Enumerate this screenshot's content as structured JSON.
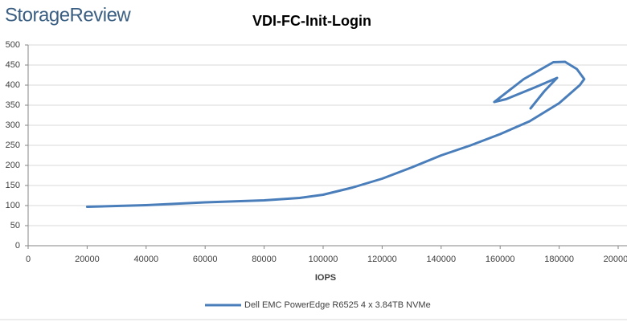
{
  "logo": "StorageReview",
  "chart_data": {
    "type": "line",
    "title": "VDI-FC-Init-Login",
    "x_label": "IOPS",
    "xlim": [
      0,
      200000
    ],
    "xticks": [
      0,
      20000,
      40000,
      60000,
      80000,
      100000,
      120000,
      140000,
      160000,
      180000,
      200000
    ],
    "ylim": [
      0,
      500
    ],
    "yticks": [
      0,
      50,
      100,
      150,
      200,
      250,
      300,
      350,
      400,
      450,
      500
    ],
    "grid": true,
    "series": [
      {
        "name": "Dell EMC PowerEdge R6525 4 x 3.84TB NVMe",
        "color": "#4a7ebb",
        "x": [
          20000,
          40000,
          60000,
          80000,
          92000,
          100000,
          110000,
          120000,
          130000,
          140000,
          150000,
          160000,
          170000,
          180000,
          187000,
          188500,
          186000,
          182000,
          178000,
          168000,
          158000,
          162000,
          172000,
          179300,
          175000,
          170300
        ],
        "values": [
          97,
          101,
          108,
          113,
          119,
          127,
          145,
          167,
          195,
          225,
          250,
          278,
          310,
          355,
          400,
          415,
          440,
          458,
          457,
          415,
          358,
          365,
          395,
          418,
          385,
          342
        ]
      }
    ]
  }
}
